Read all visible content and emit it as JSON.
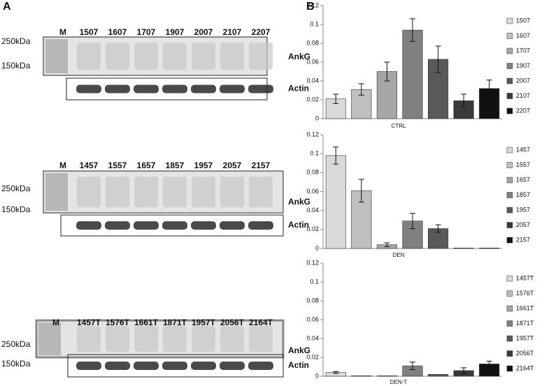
{
  "panel_labels": [
    "A",
    "B"
  ],
  "blots": [
    {
      "lanes": [
        "M",
        "1507",
        "1607",
        "1707",
        "1907",
        "2007",
        "2107",
        "2207"
      ],
      "markers": [
        "250kDa",
        "150kDa"
      ],
      "bands": [
        "AnkG",
        "Actin"
      ]
    },
    {
      "lanes": [
        "M",
        "1457",
        "1557",
        "1657",
        "1857",
        "1957",
        "2057",
        "2157"
      ],
      "markers": [
        "250kDa",
        "150kDa"
      ],
      "bands": [
        "AnkG",
        "Actin"
      ]
    },
    {
      "lanes": [
        "M",
        "1457T",
        "1576T",
        "1661T",
        "1871T",
        "1957T",
        "2056T",
        "2164T"
      ],
      "markers": [
        "250kDa",
        "150kDa"
      ],
      "bands": [
        "AnkG",
        "Actin"
      ]
    }
  ],
  "chart_data": [
    {
      "type": "bar",
      "x_label": "CTRL",
      "categories": [
        "1507",
        "1607",
        "1707",
        "1907",
        "2007",
        "2107",
        "2207"
      ],
      "values": [
        0.021,
        0.031,
        0.05,
        0.094,
        0.063,
        0.019,
        0.032
      ],
      "errors": [
        0.005,
        0.006,
        0.01,
        0.012,
        0.014,
        0.007,
        0.009
      ],
      "colors": [
        "#d9d9d9",
        "#bfbfbf",
        "#a6a6a6",
        "#808080",
        "#595959",
        "#3a3a3a",
        "#111111"
      ],
      "ylim": [
        0,
        0.12
      ],
      "yticks": [
        0,
        0.02,
        0.04,
        0.06,
        0.08,
        0.1,
        0.12
      ]
    },
    {
      "type": "bar",
      "x_label": "DEN",
      "categories": [
        "1457",
        "1557",
        "1657",
        "1857",
        "1957",
        "2057",
        "2157"
      ],
      "values": [
        0.098,
        0.061,
        0.004,
        0.029,
        0.021,
        0.0005,
        0.0005
      ],
      "errors": [
        0.009,
        0.012,
        0.002,
        0.008,
        0.004,
        0,
        0
      ],
      "colors": [
        "#d9d9d9",
        "#bfbfbf",
        "#a6a6a6",
        "#808080",
        "#595959",
        "#3a3a3a",
        "#111111"
      ],
      "ylim": [
        0,
        0.12
      ],
      "yticks": [
        0,
        0.02,
        0.04,
        0.06,
        0.08,
        0.1,
        0.12
      ]
    },
    {
      "type": "bar",
      "x_label": "DEN-T",
      "categories": [
        "1457T",
        "1576T",
        "1661T",
        "1871T",
        "1957T",
        "2056T",
        "2164T"
      ],
      "values": [
        0.004,
        0.0005,
        0.0005,
        0.011,
        0.002,
        0.006,
        0.013
      ],
      "errors": [
        0.001,
        0,
        0,
        0.004,
        0,
        0.003,
        0.003
      ],
      "colors": [
        "#d9d9d9",
        "#bfbfbf",
        "#a6a6a6",
        "#808080",
        "#595959",
        "#3a3a3a",
        "#111111"
      ],
      "ylim": [
        0,
        0.12
      ],
      "yticks": [
        0,
        0.02,
        0.04,
        0.06,
        0.08,
        0.1,
        0.12
      ]
    }
  ]
}
